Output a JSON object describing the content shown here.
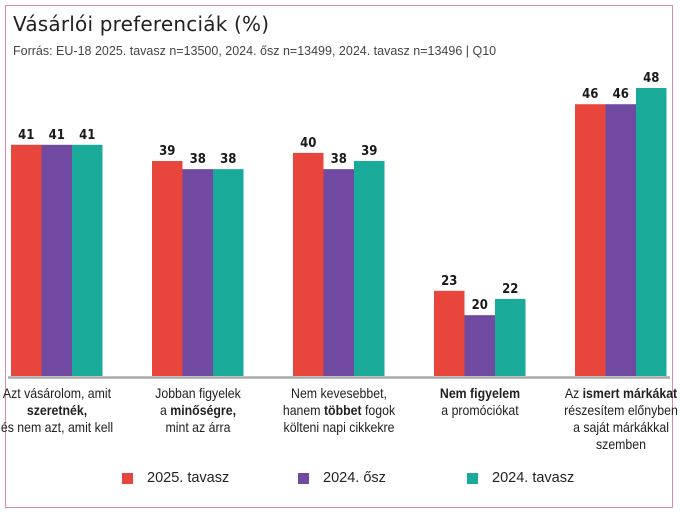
{
  "header": {
    "title": "Vásárlói preferenciák (%)",
    "subtitle": "Forrás: EU-18 2025. tavasz n=13500, 2024. ősz n=13499, 2024. tavasz n=13496 | Q10"
  },
  "colors": {
    "series_2025_tavasz": "#e8453c",
    "series_2024_osz": "#6f4aa0",
    "series_2024_tavasz": "#1aaa9a",
    "frame": "#d58ab8",
    "baseline": "#aaaaaa"
  },
  "chart_data": {
    "type": "bar",
    "title": "Vásárlói preferenciák (%)",
    "subtitle": "Forrás: EU-18 2025. tavasz n=13500, 2024. ősz n=13499, 2024. tavasz n=13496 | Q10",
    "xlabel": "",
    "ylabel": "",
    "grid": false,
    "legend_position": "bottom",
    "categories": [
      "Azt vásárolom, amit szeretnék, és nem azt, amit kell",
      "Jobban figyelek a minőségre, mint az árra",
      "Nem kevesebbet, hanem többet fogok költeni napi cikkekre",
      "Nem figyelem a promóciókat",
      "Az ismert márkákat részesítem előnyben a saját márkákkal szemben"
    ],
    "category_labels": [
      [
        {
          "t": "Azt vásárolom, amit",
          "b": false
        },
        {
          "t": "szeretnék,",
          "b": true
        },
        {
          "t": "és nem azt, amit kell",
          "b": false
        }
      ],
      [
        {
          "t": "Jobban figyelek",
          "b": false
        },
        {
          "t": "a ",
          "b": false,
          "inline": [
            {
              "t": "minőségre,",
              "b": true
            }
          ]
        },
        {
          "t": "mint az árra",
          "b": false
        }
      ],
      [
        {
          "t": "Nem kevesebbet,",
          "b": false
        },
        {
          "t": "hanem ",
          "b": false,
          "inline": [
            {
              "t": "többet",
              "b": true
            },
            {
              "t": " fogok",
              "b": false
            }
          ]
        },
        {
          "t": "költeni napi cikkekre",
          "b": false
        }
      ],
      [
        {
          "t": "Nem figyelem",
          "b": true
        },
        {
          "t": "a promóciókat",
          "b": false
        }
      ],
      [
        {
          "t": "Az ",
          "b": false,
          "inline": [
            {
              "t": "ismert márkákat",
              "b": true
            }
          ]
        },
        {
          "t": "részesítem előnyben",
          "b": false
        },
        {
          "t": "a saját márkákkal",
          "b": false
        },
        {
          "t": "szemben",
          "b": false
        }
      ]
    ],
    "series": [
      {
        "name": "2025. tavasz",
        "color": "#e8453c",
        "values": [
          41,
          39,
          40,
          23,
          46
        ]
      },
      {
        "name": "2024. ősz",
        "color": "#6f4aa0",
        "values": [
          41,
          38,
          38,
          20,
          46
        ]
      },
      {
        "name": "2024. tavasz",
        "color": "#1aaa9a",
        "values": [
          41,
          38,
          39,
          22,
          48
        ]
      }
    ],
    "ylim": [
      12.5,
      50
    ]
  },
  "legend": [
    {
      "label": "2025. tavasz",
      "color": "#e8453c"
    },
    {
      "label": "2024. ősz",
      "color": "#6f4aa0"
    },
    {
      "label": "2024. tavasz",
      "color": "#1aaa9a"
    }
  ]
}
